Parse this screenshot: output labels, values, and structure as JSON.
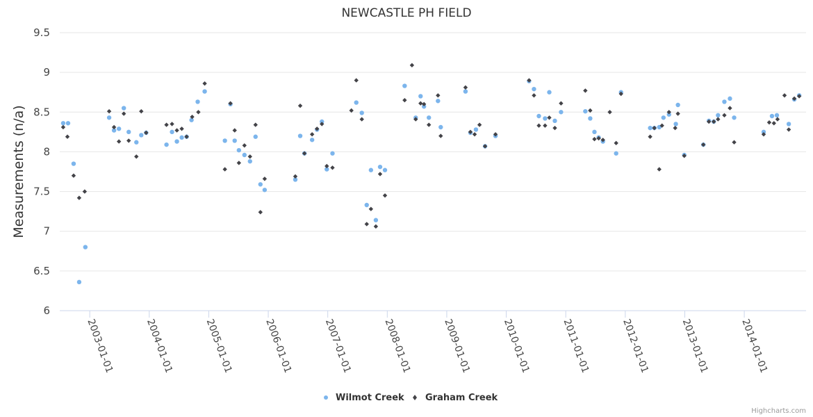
{
  "chart_data": {
    "type": "scatter",
    "title": "NEWCASTLE PH FIELD",
    "xlabel": "",
    "ylabel": "Measurements (n/a)",
    "ylim": [
      6,
      9.5
    ],
    "yticks": [
      "6",
      "6.5",
      "7",
      "7.5",
      "8",
      "8.5",
      "9",
      "9.5"
    ],
    "ytick_values": [
      6,
      6.5,
      7,
      7.5,
      8,
      8.5,
      9,
      9.5
    ],
    "xlim": [
      "2002-07-01",
      "2015-01-15"
    ],
    "xticks": [
      "2003-01-01",
      "2004-01-01",
      "2005-01-01",
      "2006-01-01",
      "2007-01-01",
      "2008-01-01",
      "2009-01-01",
      "2010-01-01",
      "2011-01-01",
      "2012-01-01",
      "2013-01-01",
      "2014-01-01"
    ],
    "grid": true,
    "legend_position": "bottom-center",
    "credit": "Highcharts.com",
    "series": [
      {
        "name": "Wilmot Creek",
        "color": "#7cb5ec",
        "marker": "circle",
        "points": [
          [
            "2002-07-22",
            8.36
          ],
          [
            "2002-08-21",
            8.36
          ],
          [
            "2002-09-24",
            7.85
          ],
          [
            "2002-10-28",
            6.36
          ],
          [
            "2002-12-05",
            6.8
          ],
          [
            "2003-04-30",
            8.43
          ],
          [
            "2003-05-30",
            8.27
          ],
          [
            "2003-06-29",
            8.29
          ],
          [
            "2003-07-29",
            8.55
          ],
          [
            "2003-08-28",
            8.25
          ],
          [
            "2003-10-14",
            8.12
          ],
          [
            "2003-11-13",
            8.21
          ],
          [
            "2003-12-13",
            8.24
          ],
          [
            "2004-04-16",
            8.09
          ],
          [
            "2004-05-20",
            8.25
          ],
          [
            "2004-06-19",
            8.13
          ],
          [
            "2004-07-19",
            8.18
          ],
          [
            "2004-08-18",
            8.19
          ],
          [
            "2004-09-17",
            8.4
          ],
          [
            "2004-10-25",
            8.63
          ],
          [
            "2004-12-07",
            8.76
          ],
          [
            "2005-04-10",
            8.14
          ],
          [
            "2005-05-14",
            8.6
          ],
          [
            "2005-06-09",
            8.14
          ],
          [
            "2005-07-05",
            8.02
          ],
          [
            "2005-08-08",
            7.96
          ],
          [
            "2005-09-11",
            7.88
          ],
          [
            "2005-10-15",
            8.19
          ],
          [
            "2005-11-14",
            7.59
          ],
          [
            "2005-12-10",
            7.52
          ],
          [
            "2006-06-16",
            7.65
          ],
          [
            "2006-07-16",
            8.2
          ],
          [
            "2006-08-11",
            7.98
          ],
          [
            "2006-09-27",
            8.15
          ],
          [
            "2006-10-27",
            8.28
          ],
          [
            "2006-11-26",
            8.38
          ],
          [
            "2006-12-26",
            7.78
          ],
          [
            "2007-01-30",
            7.98
          ],
          [
            "2007-06-25",
            8.62
          ],
          [
            "2007-07-29",
            8.49
          ],
          [
            "2007-08-28",
            7.33
          ],
          [
            "2007-09-23",
            7.77
          ],
          [
            "2007-10-23",
            7.14
          ],
          [
            "2007-11-18",
            7.81
          ],
          [
            "2007-12-18",
            7.77
          ],
          [
            "2008-04-17",
            8.83
          ],
          [
            "2008-06-24",
            8.43
          ],
          [
            "2008-07-24",
            8.7
          ],
          [
            "2008-08-14",
            8.57
          ],
          [
            "2008-09-13",
            8.43
          ],
          [
            "2008-11-08",
            8.64
          ],
          [
            "2008-11-25",
            8.31
          ],
          [
            "2009-04-26",
            8.76
          ],
          [
            "2009-05-26",
            8.24
          ],
          [
            "2009-06-29",
            8.28
          ],
          [
            "2009-08-24",
            8.07
          ],
          [
            "2009-10-27",
            8.2
          ],
          [
            "2010-05-21",
            8.89
          ],
          [
            "2010-06-20",
            8.79
          ],
          [
            "2010-07-20",
            8.45
          ],
          [
            "2010-08-27",
            8.42
          ],
          [
            "2010-09-22",
            8.75
          ],
          [
            "2010-10-26",
            8.39
          ],
          [
            "2010-12-03",
            8.5
          ],
          [
            "2011-05-01",
            8.51
          ],
          [
            "2011-05-31",
            8.42
          ],
          [
            "2011-06-26",
            8.25
          ],
          [
            "2011-07-22",
            8.18
          ],
          [
            "2011-08-17",
            8.13
          ],
          [
            "2011-11-06",
            7.98
          ],
          [
            "2011-12-06",
            8.75
          ],
          [
            "2012-06-02",
            8.3
          ],
          [
            "2012-06-28",
            8.3
          ],
          [
            "2012-07-28",
            8.31
          ],
          [
            "2012-08-23",
            8.43
          ],
          [
            "2012-09-26",
            8.47
          ],
          [
            "2012-11-07",
            8.35
          ],
          [
            "2012-11-20",
            8.59
          ],
          [
            "2012-12-29",
            7.96
          ],
          [
            "2013-04-25",
            8.09
          ],
          [
            "2013-05-29",
            8.39
          ],
          [
            "2013-06-28",
            8.38
          ],
          [
            "2013-07-24",
            8.46
          ],
          [
            "2013-09-01",
            8.63
          ],
          [
            "2013-10-05",
            8.67
          ],
          [
            "2013-10-31",
            8.43
          ],
          [
            "2014-04-30",
            8.25
          ],
          [
            "2014-06-20",
            8.45
          ],
          [
            "2014-07-20",
            8.46
          ],
          [
            "2014-10-01",
            8.35
          ],
          [
            "2014-11-04",
            8.66
          ],
          [
            "2014-12-04",
            8.71
          ]
        ]
      },
      {
        "name": "Graham Creek",
        "color": "#434348",
        "marker": "diamond",
        "points": [
          [
            "2002-07-22",
            8.31
          ],
          [
            "2002-08-17",
            8.19
          ],
          [
            "2002-09-24",
            7.7
          ],
          [
            "2002-10-28",
            7.42
          ],
          [
            "2002-12-01",
            7.5
          ],
          [
            "2003-04-30",
            8.51
          ],
          [
            "2003-05-30",
            8.31
          ],
          [
            "2003-06-29",
            8.13
          ],
          [
            "2003-07-29",
            8.48
          ],
          [
            "2003-08-28",
            8.14
          ],
          [
            "2003-10-14",
            7.94
          ],
          [
            "2003-11-13",
            8.51
          ],
          [
            "2003-12-13",
            8.24
          ],
          [
            "2004-04-16",
            8.34
          ],
          [
            "2004-05-20",
            8.35
          ],
          [
            "2004-06-19",
            8.27
          ],
          [
            "2004-07-19",
            8.29
          ],
          [
            "2004-08-18",
            8.19
          ],
          [
            "2004-09-21",
            8.44
          ],
          [
            "2004-10-29",
            8.5
          ],
          [
            "2004-12-07",
            8.86
          ],
          [
            "2005-04-10",
            7.78
          ],
          [
            "2005-05-14",
            8.61
          ],
          [
            "2005-06-09",
            8.27
          ],
          [
            "2005-07-05",
            7.86
          ],
          [
            "2005-08-08",
            8.08
          ],
          [
            "2005-09-11",
            7.94
          ],
          [
            "2005-10-15",
            8.34
          ],
          [
            "2005-11-14",
            7.24
          ],
          [
            "2005-12-10",
            7.66
          ],
          [
            "2006-06-16",
            7.69
          ],
          [
            "2006-07-16",
            8.58
          ],
          [
            "2006-08-11",
            7.98
          ],
          [
            "2006-09-27",
            8.22
          ],
          [
            "2006-10-27",
            8.29
          ],
          [
            "2006-11-26",
            8.35
          ],
          [
            "2006-12-26",
            7.82
          ],
          [
            "2007-01-30",
            7.8
          ],
          [
            "2007-05-26",
            8.52
          ],
          [
            "2007-06-25",
            8.9
          ],
          [
            "2007-07-29",
            8.41
          ],
          [
            "2007-08-28",
            7.09
          ],
          [
            "2007-09-23",
            7.28
          ],
          [
            "2007-10-23",
            7.06
          ],
          [
            "2007-11-18",
            7.72
          ],
          [
            "2007-12-18",
            7.45
          ],
          [
            "2008-04-17",
            8.65
          ],
          [
            "2008-06-01",
            9.09
          ],
          [
            "2008-06-24",
            8.41
          ],
          [
            "2008-07-24",
            8.61
          ],
          [
            "2008-08-14",
            8.6
          ],
          [
            "2008-09-13",
            8.34
          ],
          [
            "2008-11-08",
            8.71
          ],
          [
            "2008-11-25",
            8.2
          ],
          [
            "2009-04-26",
            8.81
          ],
          [
            "2009-05-26",
            8.25
          ],
          [
            "2009-06-21",
            8.22
          ],
          [
            "2009-07-21",
            8.34
          ],
          [
            "2009-08-24",
            8.07
          ],
          [
            "2009-10-27",
            8.22
          ],
          [
            "2010-05-21",
            8.9
          ],
          [
            "2010-06-20",
            8.71
          ],
          [
            "2010-07-20",
            8.33
          ],
          [
            "2010-08-27",
            8.33
          ],
          [
            "2010-09-22",
            8.43
          ],
          [
            "2010-10-26",
            8.3
          ],
          [
            "2010-12-03",
            8.61
          ],
          [
            "2011-05-01",
            8.77
          ],
          [
            "2011-05-31",
            8.52
          ],
          [
            "2011-06-26",
            8.16
          ],
          [
            "2011-07-22",
            8.17
          ],
          [
            "2011-08-17",
            8.15
          ],
          [
            "2011-09-28",
            8.5
          ],
          [
            "2011-11-06",
            8.11
          ],
          [
            "2011-12-06",
            8.73
          ],
          [
            "2012-06-02",
            8.19
          ],
          [
            "2012-06-28",
            8.3
          ],
          [
            "2012-07-28",
            7.78
          ],
          [
            "2012-08-14",
            8.33
          ],
          [
            "2012-09-26",
            8.5
          ],
          [
            "2012-11-03",
            8.3
          ],
          [
            "2012-11-20",
            8.48
          ],
          [
            "2012-12-29",
            7.95
          ],
          [
            "2013-04-25",
            8.09
          ],
          [
            "2013-05-29",
            8.38
          ],
          [
            "2013-06-28",
            8.38
          ],
          [
            "2013-07-24",
            8.41
          ],
          [
            "2013-09-01",
            8.46
          ],
          [
            "2013-10-05",
            8.55
          ],
          [
            "2013-10-31",
            8.12
          ],
          [
            "2014-04-30",
            8.22
          ],
          [
            "2014-06-03",
            8.37
          ],
          [
            "2014-07-02",
            8.36
          ],
          [
            "2014-07-24",
            8.41
          ],
          [
            "2014-09-05",
            8.71
          ],
          [
            "2014-10-01",
            8.28
          ],
          [
            "2014-11-04",
            8.67
          ],
          [
            "2014-12-04",
            8.7
          ]
        ]
      }
    ]
  }
}
